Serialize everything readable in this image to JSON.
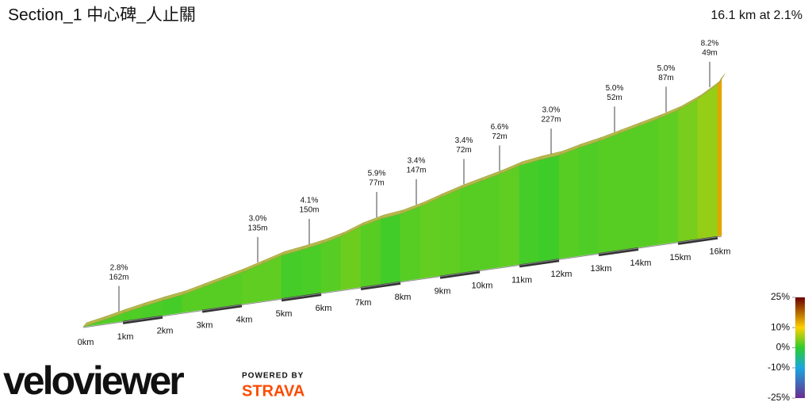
{
  "chart_data": {
    "type": "elevation-profile",
    "title": "Section_1 中心碑_人止關",
    "summary": "16.1 km at 2.1%",
    "x": [
      0,
      0.5,
      1,
      1.5,
      2,
      2.5,
      3,
      3.5,
      4,
      4.5,
      5,
      5.5,
      6,
      6.5,
      7,
      7.5,
      8,
      8.5,
      9,
      9.5,
      10,
      10.5,
      11,
      11.5,
      12,
      12.5,
      13,
      13.5,
      14,
      14.5,
      15,
      15.5,
      16,
      16.1
    ],
    "elevation": [
      0,
      8,
      17,
      25,
      32,
      38,
      48,
      58,
      68,
      80,
      92,
      98,
      105,
      115,
      130,
      140,
      145,
      155,
      168,
      180,
      190,
      200,
      212,
      218,
      222,
      232,
      240,
      250,
      260,
      270,
      282,
      300,
      325,
      338
    ],
    "xlim": [
      0,
      16.1
    ],
    "xticks": [
      {
        "value": 0,
        "label": "0km"
      },
      {
        "value": 1,
        "label": "1km"
      },
      {
        "value": 2,
        "label": "2km"
      },
      {
        "value": 3,
        "label": "3km"
      },
      {
        "value": 4,
        "label": "4km"
      },
      {
        "value": 5,
        "label": "5km"
      },
      {
        "value": 6,
        "label": "6km"
      },
      {
        "value": 7,
        "label": "7km"
      },
      {
        "value": 8,
        "label": "8km"
      },
      {
        "value": 9,
        "label": "9km"
      },
      {
        "value": 10,
        "label": "10km"
      },
      {
        "value": 11,
        "label": "11km"
      },
      {
        "value": 12,
        "label": "12km"
      },
      {
        "value": 13,
        "label": "13km"
      },
      {
        "value": 14,
        "label": "14km"
      },
      {
        "value": 15,
        "label": "15km"
      },
      {
        "value": 16,
        "label": "16km"
      }
    ],
    "annotations": [
      {
        "km": 0.9,
        "grade": {
          "value": 2.8,
          "label": "2.8%"
        },
        "length": {
          "value": 162,
          "label": "162m"
        }
      },
      {
        "km": 4.4,
        "grade": {
          "value": 3.0,
          "label": "3.0%"
        },
        "length": {
          "value": 135,
          "label": "135m"
        }
      },
      {
        "km": 5.7,
        "grade": {
          "value": 4.1,
          "label": "4.1%"
        },
        "length": {
          "value": 150,
          "label": "150m"
        }
      },
      {
        "km": 7.4,
        "grade": {
          "value": 5.9,
          "label": "5.9%"
        },
        "length": {
          "value": 77,
          "label": "77m"
        }
      },
      {
        "km": 8.4,
        "grade": {
          "value": 3.4,
          "label": "3.4%"
        },
        "length": {
          "value": 147,
          "label": "147m"
        }
      },
      {
        "km": 9.6,
        "grade": {
          "value": 3.4,
          "label": "3.4%"
        },
        "length": {
          "value": 72,
          "label": "72m"
        }
      },
      {
        "km": 10.5,
        "grade": {
          "value": 6.6,
          "label": "6.6%"
        },
        "length": {
          "value": 72,
          "label": "72m"
        }
      },
      {
        "km": 11.8,
        "grade": {
          "value": 3.0,
          "label": "3.0%"
        },
        "length": {
          "value": 227,
          "label": "227m"
        }
      },
      {
        "km": 13.4,
        "grade": {
          "value": 5.0,
          "label": "5.0%"
        },
        "length": {
          "value": 52,
          "label": "52m"
        }
      },
      {
        "km": 14.7,
        "grade": {
          "value": 5.0,
          "label": "5.0%"
        },
        "length": {
          "value": 87,
          "label": "87m"
        }
      },
      {
        "km": 15.8,
        "grade": {
          "value": 8.2,
          "label": "8.2%"
        },
        "length": {
          "value": 49,
          "label": "49m"
        }
      }
    ],
    "colorscale": {
      "ticks": [
        {
          "value": 25,
          "label": "25%"
        },
        {
          "value": 10,
          "label": "10%"
        },
        {
          "value": 0,
          "label": "0%"
        },
        {
          "value": -10,
          "label": "-10%"
        },
        {
          "value": -25,
          "label": "-25%"
        }
      ],
      "colors": [
        "#6b0000",
        "#ffd000",
        "#2dcc2d",
        "#19a7e0",
        "#6b2c91"
      ]
    }
  },
  "branding": {
    "logo": "veloviewer",
    "powered": "POWERED BY",
    "partner": "STRAVA"
  }
}
